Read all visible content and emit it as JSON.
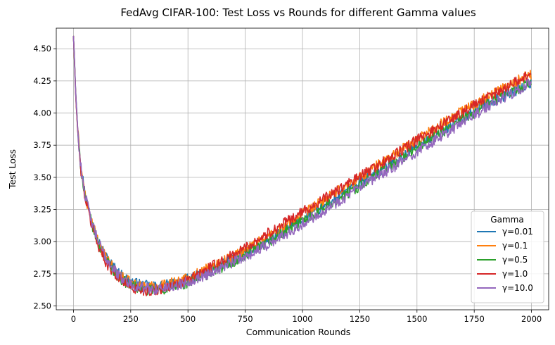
{
  "chart_data": {
    "type": "line",
    "title": "FedAvg CIFAR-100: Test Loss vs Rounds for different Gamma values",
    "xlabel": "Communication Rounds",
    "ylabel": "Test Loss",
    "xlim": [
      -75,
      2075
    ],
    "ylim": [
      2.47,
      4.66
    ],
    "xticks": [
      0,
      250,
      500,
      750,
      1000,
      1250,
      1500,
      1750,
      2000
    ],
    "xtick_labels": [
      "0",
      "250",
      "500",
      "750",
      "1000",
      "1250",
      "1500",
      "1750",
      "2000"
    ],
    "yticks": [
      2.5,
      2.75,
      3.0,
      3.25,
      3.5,
      3.75,
      4.0,
      4.25,
      4.5
    ],
    "ytick_labels": [
      "2.50",
      "2.75",
      "3.00",
      "3.25",
      "3.50",
      "3.75",
      "4.00",
      "4.25",
      "4.50"
    ],
    "grid": true,
    "legend": {
      "title": "Gamma",
      "position": "lower-right"
    },
    "x": [
      0,
      5,
      10,
      20,
      30,
      50,
      75,
      100,
      125,
      150,
      200,
      250,
      300,
      350,
      400,
      450,
      500,
      550,
      600,
      700,
      800,
      900,
      1000,
      1100,
      1200,
      1300,
      1400,
      1500,
      1600,
      1700,
      1800,
      1900,
      2000
    ],
    "series": [
      {
        "name": "γ=0.01",
        "color": "#1f77b4",
        "values": [
          4.6,
          4.4,
          4.15,
          3.85,
          3.62,
          3.38,
          3.19,
          3.05,
          2.94,
          2.86,
          2.75,
          2.69,
          2.66,
          2.65,
          2.66,
          2.68,
          2.71,
          2.74,
          2.78,
          2.86,
          2.96,
          3.06,
          3.17,
          3.28,
          3.4,
          3.51,
          3.62,
          3.74,
          3.85,
          3.96,
          4.07,
          4.15,
          4.23
        ]
      },
      {
        "name": "γ=0.1",
        "color": "#ff7f0e",
        "values": [
          4.6,
          4.39,
          4.14,
          3.84,
          3.61,
          3.37,
          3.18,
          3.04,
          2.93,
          2.85,
          2.74,
          2.68,
          2.65,
          2.65,
          2.67,
          2.69,
          2.72,
          2.76,
          2.8,
          2.89,
          2.99,
          3.1,
          3.21,
          3.33,
          3.44,
          3.56,
          3.68,
          3.79,
          3.91,
          4.02,
          4.12,
          4.22,
          4.3
        ]
      },
      {
        "name": "γ=0.5",
        "color": "#2ca02c",
        "values": [
          4.6,
          4.38,
          4.13,
          3.83,
          3.6,
          3.36,
          3.17,
          3.03,
          2.92,
          2.84,
          2.72,
          2.66,
          2.63,
          2.62,
          2.63,
          2.65,
          2.68,
          2.72,
          2.76,
          2.84,
          2.94,
          3.05,
          3.16,
          3.27,
          3.38,
          3.49,
          3.61,
          3.73,
          3.84,
          3.95,
          4.06,
          4.15,
          4.24
        ]
      },
      {
        "name": "γ=1.0",
        "color": "#d62728",
        "values": [
          4.6,
          4.38,
          4.12,
          3.82,
          3.59,
          3.35,
          3.16,
          3.01,
          2.9,
          2.82,
          2.71,
          2.65,
          2.62,
          2.62,
          2.64,
          2.66,
          2.7,
          2.75,
          2.8,
          2.9,
          3.01,
          3.12,
          3.23,
          3.34,
          3.45,
          3.56,
          3.67,
          3.79,
          3.9,
          4.01,
          4.11,
          4.21,
          4.31
        ]
      },
      {
        "name": "γ=10.0",
        "color": "#9467bd",
        "values": [
          4.6,
          4.39,
          4.14,
          3.84,
          3.61,
          3.37,
          3.18,
          3.04,
          2.93,
          2.85,
          2.73,
          2.67,
          2.64,
          2.63,
          2.64,
          2.66,
          2.69,
          2.72,
          2.76,
          2.84,
          2.93,
          3.03,
          3.14,
          3.25,
          3.36,
          3.47,
          3.58,
          3.7,
          3.81,
          3.93,
          4.04,
          4.14,
          4.24
        ]
      }
    ]
  }
}
